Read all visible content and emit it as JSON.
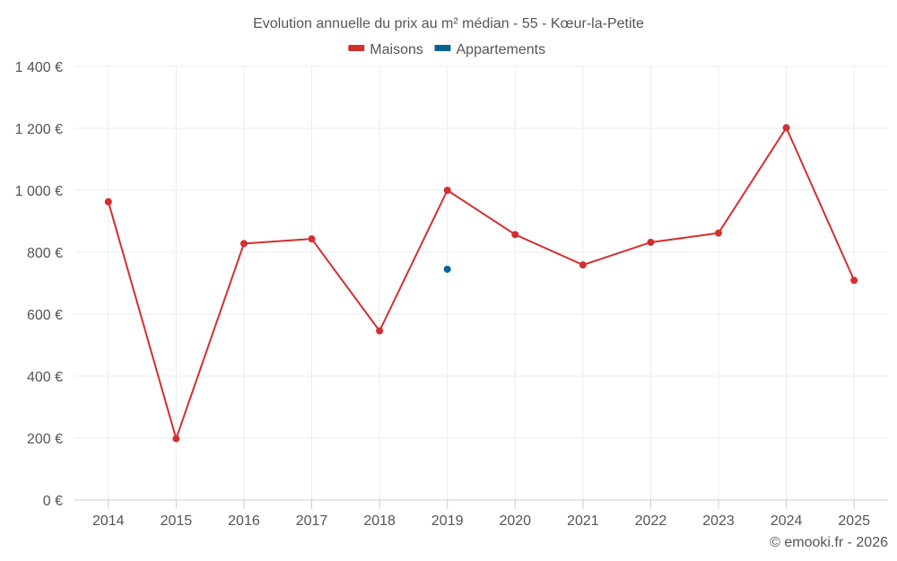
{
  "chart_data": {
    "type": "line",
    "title": "Evolution annuelle du prix au m² médian - 55 - Kœur-la-Petite",
    "categories": [
      "2014",
      "2015",
      "2016",
      "2017",
      "2018",
      "2019",
      "2020",
      "2021",
      "2022",
      "2023",
      "2024",
      "2025"
    ],
    "series": [
      {
        "name": "Maisons",
        "color": "#d32f2f",
        "values": [
          963,
          198,
          828,
          843,
          546,
          1000,
          857,
          759,
          832,
          862,
          1202,
          709
        ]
      },
      {
        "name": "Appartements",
        "color": "#0a6496",
        "values": [
          null,
          null,
          null,
          null,
          null,
          745,
          null,
          null,
          null,
          null,
          null,
          null
        ]
      }
    ],
    "ylim": [
      0,
      1400
    ],
    "yticks": [
      0,
      200,
      400,
      600,
      800,
      1000,
      1200,
      1400
    ],
    "ytick_labels": [
      "0 €",
      "200 €",
      "400 €",
      "600 €",
      "800 €",
      "1 000 €",
      "1 200 €",
      "1 400 €"
    ],
    "xlabel": "",
    "ylabel": "",
    "grid": true,
    "legend": "top-center"
  },
  "credit": "© emooki.fr - 2026"
}
